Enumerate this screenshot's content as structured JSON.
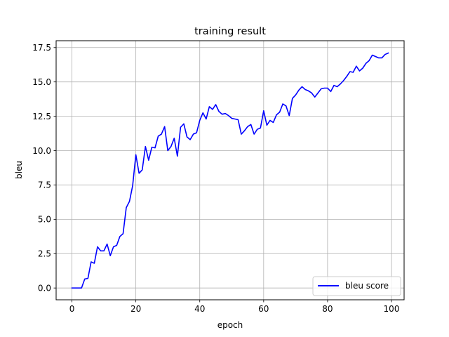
{
  "chart_data": {
    "type": "line",
    "title": "training result",
    "xlabel": "epoch",
    "ylabel": "bleu",
    "xlim": [
      -4.95,
      103.95
    ],
    "ylim": [
      -0.86,
      18.0
    ],
    "xticks": [
      0,
      20,
      40,
      60,
      80,
      100
    ],
    "xtick_labels": [
      "0",
      "20",
      "40",
      "60",
      "80",
      "100"
    ],
    "yticks": [
      0.0,
      2.5,
      5.0,
      7.5,
      10.0,
      12.5,
      15.0,
      17.5
    ],
    "ytick_labels": [
      "0.0",
      "2.5",
      "5.0",
      "7.5",
      "10.0",
      "12.5",
      "15.0",
      "17.5"
    ],
    "grid": true,
    "legend_position": "lower-right",
    "series": [
      {
        "name": "bleu score",
        "color": "#0000ff",
        "x": [
          0,
          1,
          2,
          3,
          4,
          5,
          6,
          7,
          8,
          9,
          10,
          11,
          12,
          13,
          14,
          15,
          16,
          17,
          18,
          19,
          20,
          21,
          22,
          23,
          24,
          25,
          26,
          27,
          28,
          29,
          30,
          31,
          32,
          33,
          34,
          35,
          36,
          37,
          38,
          39,
          40,
          41,
          42,
          43,
          44,
          45,
          46,
          47,
          48,
          49,
          50,
          51,
          52,
          53,
          54,
          55,
          56,
          57,
          58,
          59,
          60,
          61,
          62,
          63,
          64,
          65,
          66,
          67,
          68,
          69,
          70,
          71,
          72,
          73,
          74,
          75,
          76,
          77,
          78,
          79,
          80,
          81,
          82,
          83,
          84,
          85,
          86,
          87,
          88,
          89,
          90,
          91,
          92,
          93,
          94,
          95,
          96,
          97,
          98,
          99
        ],
        "values": [
          0.0,
          0.0,
          0.0,
          0.0,
          0.65,
          0.7,
          1.9,
          1.8,
          3.0,
          2.7,
          2.7,
          3.2,
          2.35,
          3.0,
          3.1,
          3.75,
          3.95,
          5.85,
          6.3,
          7.45,
          9.7,
          8.35,
          8.6,
          10.3,
          9.3,
          10.25,
          10.2,
          11.05,
          11.2,
          11.75,
          10.0,
          10.3,
          10.9,
          9.6,
          11.7,
          11.95,
          11.0,
          10.8,
          11.2,
          11.3,
          12.2,
          12.75,
          12.3,
          13.2,
          13.0,
          13.35,
          12.85,
          12.65,
          12.7,
          12.55,
          12.35,
          12.3,
          12.25,
          11.2,
          11.45,
          11.75,
          11.9,
          11.2,
          11.55,
          11.65,
          12.9,
          11.85,
          12.2,
          12.05,
          12.6,
          12.8,
          13.4,
          13.25,
          12.55,
          13.8,
          14.05,
          14.4,
          14.65,
          14.45,
          14.35,
          14.2,
          13.9,
          14.2,
          14.5,
          14.55,
          14.55,
          14.3,
          14.75,
          14.65,
          14.85,
          15.1,
          15.4,
          15.75,
          15.7,
          16.15,
          15.8,
          16.0,
          16.35,
          16.55,
          16.95,
          16.85,
          16.75,
          16.75,
          17.0,
          17.1
        ]
      }
    ]
  }
}
